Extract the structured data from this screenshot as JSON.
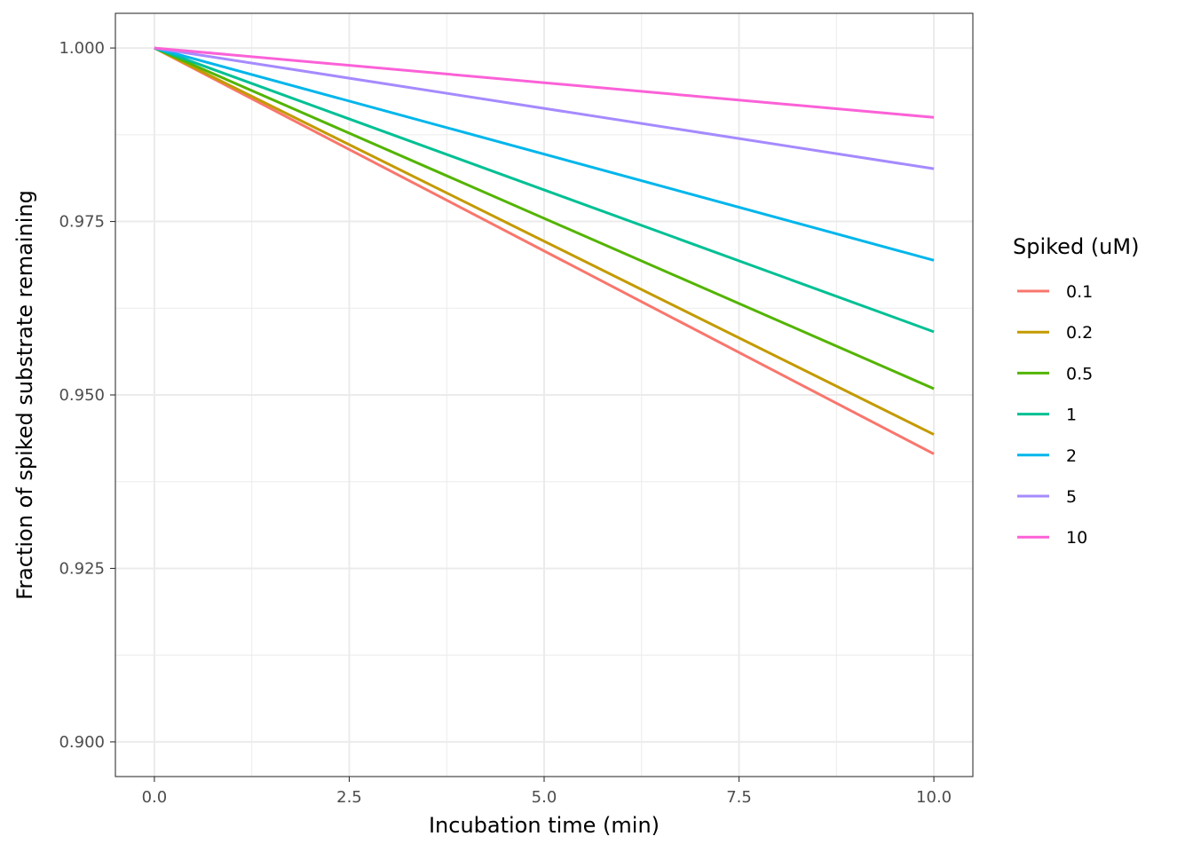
{
  "chart_data": {
    "type": "line",
    "xlabel": "Incubation time (min)",
    "ylabel": "Fraction of spiked substrate remaining",
    "xlim": [
      -0.5,
      10.5
    ],
    "ylim": [
      0.895,
      1.005
    ],
    "x_ticks": [
      0.0,
      2.5,
      5.0,
      7.5,
      10.0
    ],
    "x_tick_labels": [
      "0.0",
      "2.5",
      "5.0",
      "7.5",
      "10.0"
    ],
    "y_ticks": [
      0.9,
      0.925,
      0.95,
      0.975,
      1.0
    ],
    "y_tick_labels": [
      "0.900",
      "0.925",
      "0.950",
      "0.975",
      "1.000"
    ],
    "grid": true,
    "legend": {
      "title": "Spiked (uM)",
      "placement": "right"
    },
    "series": [
      {
        "name": "0.1",
        "color": "#F8766D",
        "x": [
          0,
          10
        ],
        "y": [
          1.0,
          0.9415
        ]
      },
      {
        "name": "0.2",
        "color": "#C49A00",
        "x": [
          0,
          10
        ],
        "y": [
          1.0,
          0.9443
        ]
      },
      {
        "name": "0.5",
        "color": "#53B400",
        "x": [
          0,
          10
        ],
        "y": [
          1.0,
          0.9509
        ]
      },
      {
        "name": "1",
        "color": "#00C094",
        "x": [
          0,
          10
        ],
        "y": [
          1.0,
          0.9591
        ]
      },
      {
        "name": "2",
        "color": "#00B6EB",
        "x": [
          0,
          10
        ],
        "y": [
          1.0,
          0.9694
        ]
      },
      {
        "name": "5",
        "color": "#A58AFF",
        "x": [
          0,
          10
        ],
        "y": [
          1.0,
          0.9826
        ]
      },
      {
        "name": "10",
        "color": "#FB61D7",
        "x": [
          0,
          10
        ],
        "y": [
          1.0,
          0.99
        ]
      }
    ]
  }
}
